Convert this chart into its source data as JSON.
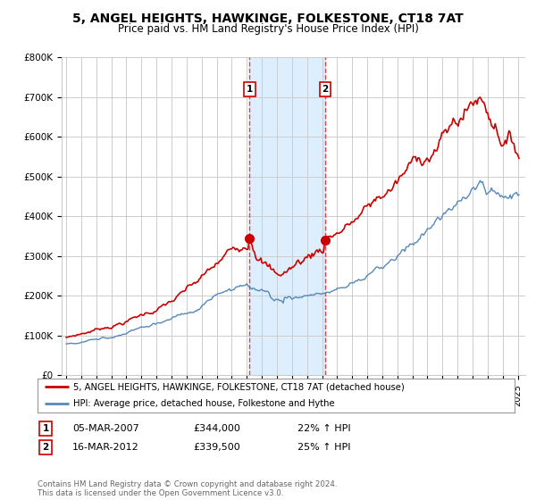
{
  "title": "5, ANGEL HEIGHTS, HAWKINGE, FOLKESTONE, CT18 7AT",
  "subtitle": "Price paid vs. HM Land Registry's House Price Index (HPI)",
  "title_fontsize": 10,
  "subtitle_fontsize": 8.5,
  "ylabel_ticks": [
    "£0",
    "£100K",
    "£200K",
    "£300K",
    "£400K",
    "£500K",
    "£600K",
    "£700K",
    "£800K"
  ],
  "ytick_values": [
    0,
    100000,
    200000,
    300000,
    400000,
    500000,
    600000,
    700000,
    800000
  ],
  "ylim": [
    0,
    800000
  ],
  "xlim_start": 1994.7,
  "xlim_end": 2025.5,
  "sale1_x": 2007.18,
  "sale1_y": 344000,
  "sale2_x": 2012.21,
  "sale2_y": 339500,
  "sale1_label": "1",
  "sale2_label": "2",
  "highlight_color": "#ddeeff",
  "highlight_x1": 2007.18,
  "highlight_x2": 2012.21,
  "vline_color": "#dd4444",
  "vline_style": "--",
  "legend_entry1": "5, ANGEL HEIGHTS, HAWKINGE, FOLKESTONE, CT18 7AT (detached house)",
  "legend_entry2": "HPI: Average price, detached house, Folkestone and Hythe",
  "red_line_color": "#cc0000",
  "blue_line_color": "#5588bb",
  "table_row1": [
    "1",
    "05-MAR-2007",
    "£344,000",
    "22% ↑ HPI"
  ],
  "table_row2": [
    "2",
    "16-MAR-2012",
    "£339,500",
    "25% ↑ HPI"
  ],
  "footer": "Contains HM Land Registry data © Crown copyright and database right 2024.\nThis data is licensed under the Open Government Licence v3.0.",
  "background_color": "#ffffff",
  "grid_color": "#cccccc",
  "xtick_years": [
    1995,
    1996,
    1997,
    1998,
    1999,
    2000,
    2001,
    2002,
    2003,
    2004,
    2005,
    2006,
    2007,
    2008,
    2009,
    2010,
    2011,
    2012,
    2013,
    2014,
    2015,
    2016,
    2017,
    2018,
    2019,
    2020,
    2021,
    2022,
    2023,
    2024,
    2025
  ]
}
